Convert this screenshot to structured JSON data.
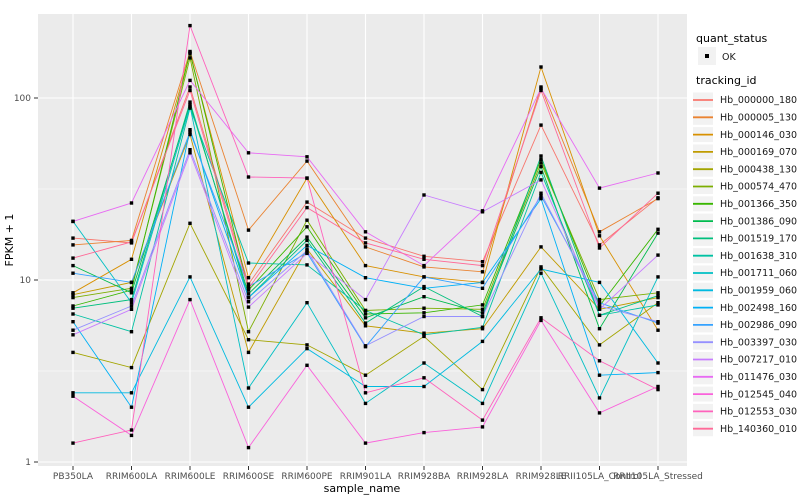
{
  "figure": {
    "background": "#FFFFFF",
    "panel_background": "#EBEBEB",
    "grid_color": "#FFFFFF",
    "tick_color": "#333333",
    "axis_text_color": "#4D4D4D",
    "axis_title_color": "#000000",
    "point_color": "#000000",
    "legend_key_background": "#F2F2F2"
  },
  "axes": {
    "x_title": "sample_name",
    "y_title": "FPKM + 1"
  },
  "legend": {
    "quant_title": "quant_status",
    "ok_label": "OK",
    "tracking_title": "tracking_id"
  },
  "chart_data": {
    "type": "line",
    "title": "",
    "xlabel": "sample_name",
    "ylabel": "FPKM + 1",
    "y_scale": "log10",
    "ylim": [
      1,
      320
    ],
    "y_tick_values": [
      1,
      10,
      100
    ],
    "y_tick_labels": [
      "1",
      "10",
      "100"
    ],
    "grid": true,
    "legend_position": "right",
    "marker": "small black square (quant_status = OK) at every data point",
    "categories": [
      "PB350LA",
      "RRIM600LA",
      "RRIM600LE",
      "RRIM600SE",
      "RRIM600PE",
      "RRIM901LA",
      "RRIM928BA",
      "RRIM928LA",
      "RRIM928LE",
      "RRII105LA_Control",
      "RRII105LA_Stressed"
    ],
    "series": [
      {
        "name": "Hb_000000_180",
        "color": "#F8766D",
        "values": [
          17,
          16,
          115,
          9.5,
          26.8,
          17,
          13.5,
          12.6,
          71,
          15.6,
          28.3
        ]
      },
      {
        "name": "Hb_000005_130",
        "color": "#EA8331",
        "values": [
          15.6,
          16.5,
          180,
          18.8,
          45,
          15.2,
          11.8,
          11.1,
          115,
          18.4,
          28
        ]
      },
      {
        "name": "Hb_000146_030",
        "color": "#D89000",
        "values": [
          8.5,
          13,
          175,
          10.3,
          36.3,
          12,
          10.4,
          9.7,
          148,
          17.5,
          5.3
        ]
      },
      {
        "name": "Hb_000169_070",
        "color": "#C09B00",
        "values": [
          8.3,
          9.7,
          63,
          4.0,
          14.8,
          5.6,
          5.1,
          5.4,
          15.2,
          6.9,
          8.0
        ]
      },
      {
        "name": "Hb_000438_130",
        "color": "#A3A500",
        "values": [
          4.0,
          3.3,
          20.5,
          4.7,
          4.4,
          3.0,
          4.9,
          2.5,
          11.8,
          4.4,
          7.5
        ]
      },
      {
        "name": "Hb_000574_470",
        "color": "#7CAE00",
        "values": [
          8.0,
          9.0,
          166,
          5.2,
          21.3,
          6.8,
          7.0,
          6.9,
          44,
          7.8,
          8.5
        ]
      },
      {
        "name": "Hb_001366_350",
        "color": "#39B600",
        "values": [
          7.2,
          8.8,
          178,
          8.8,
          19.6,
          6.5,
          6.6,
          7.3,
          46,
          7.2,
          19
        ]
      },
      {
        "name": "Hb_001386_090",
        "color": "#00BB4E",
        "values": [
          12.0,
          8.5,
          92,
          8.4,
          17.2,
          6.2,
          8.1,
          6.6,
          42,
          5.4,
          18.1
        ]
      },
      {
        "name": "Hb_001519_170",
        "color": "#00BF7D",
        "values": [
          7.0,
          7.8,
          95,
          8.0,
          16.5,
          5.8,
          9.2,
          6.3,
          48,
          6.4,
          8.2
        ]
      },
      {
        "name": "Hb_001638_310",
        "color": "#00C1A3",
        "values": [
          6.5,
          5.2,
          88,
          12.4,
          12.1,
          6.8,
          5.0,
          5.5,
          39,
          6.4,
          7.3
        ]
      },
      {
        "name": "Hb_001711_060",
        "color": "#00BFC4",
        "values": [
          21,
          7.5,
          90,
          2.55,
          7.5,
          2.1,
          3.5,
          2.1,
          10.9,
          2.25,
          10.4
        ]
      },
      {
        "name": "Hb_001959_060",
        "color": "#00BAE0",
        "values": [
          2.4,
          2.4,
          10.4,
          2.0,
          4.2,
          2.6,
          2.6,
          4.6,
          11.5,
          9.7,
          3.5
        ]
      },
      {
        "name": "Hb_002498_160",
        "color": "#00B0F6",
        "values": [
          5.9,
          2.0,
          67,
          8.0,
          15.5,
          10.3,
          9.0,
          9.7,
          28,
          3.0,
          3.1
        ]
      },
      {
        "name": "Hb_002986_090",
        "color": "#35A2FF",
        "values": [
          10.9,
          9.7,
          65,
          9.2,
          14.1,
          4.3,
          10.4,
          9.0,
          29,
          7.5,
          5.8
        ]
      },
      {
        "name": "Hb_003397_030",
        "color": "#9590FF",
        "values": [
          5.3,
          7.2,
          52,
          7.6,
          14.5,
          4.35,
          6.3,
          6.3,
          30,
          7.2,
          5.9
        ]
      },
      {
        "name": "Hb_007217_010",
        "color": "#C77CFF",
        "values": [
          5.0,
          6.9,
          50,
          7.1,
          14.0,
          7.8,
          29.3,
          23.7,
          35.5,
          6.9,
          13.7
        ]
      },
      {
        "name": "Hb_011476_030",
        "color": "#E76BF3",
        "values": [
          21,
          26.5,
          125,
          50,
          47.5,
          18.4,
          12,
          24,
          113,
          32,
          38.7
        ]
      },
      {
        "name": "Hb_012545_040",
        "color": "#FA62DB",
        "values": [
          2.3,
          1.4,
          7.8,
          1.2,
          3.4,
          1.27,
          1.45,
          1.56,
          6.0,
          1.86,
          2.6
        ]
      },
      {
        "name": "Hb_012553_030",
        "color": "#FF62BC",
        "values": [
          1.27,
          1.5,
          250,
          36.8,
          36.3,
          2.4,
          2.9,
          1.7,
          6.2,
          3.6,
          2.5
        ]
      },
      {
        "name": "Hb_140360_010",
        "color": "#FF6A98",
        "values": [
          13.2,
          16.2,
          110,
          9.0,
          25,
          16,
          13,
          12,
          110,
          15,
          30
        ]
      }
    ]
  }
}
